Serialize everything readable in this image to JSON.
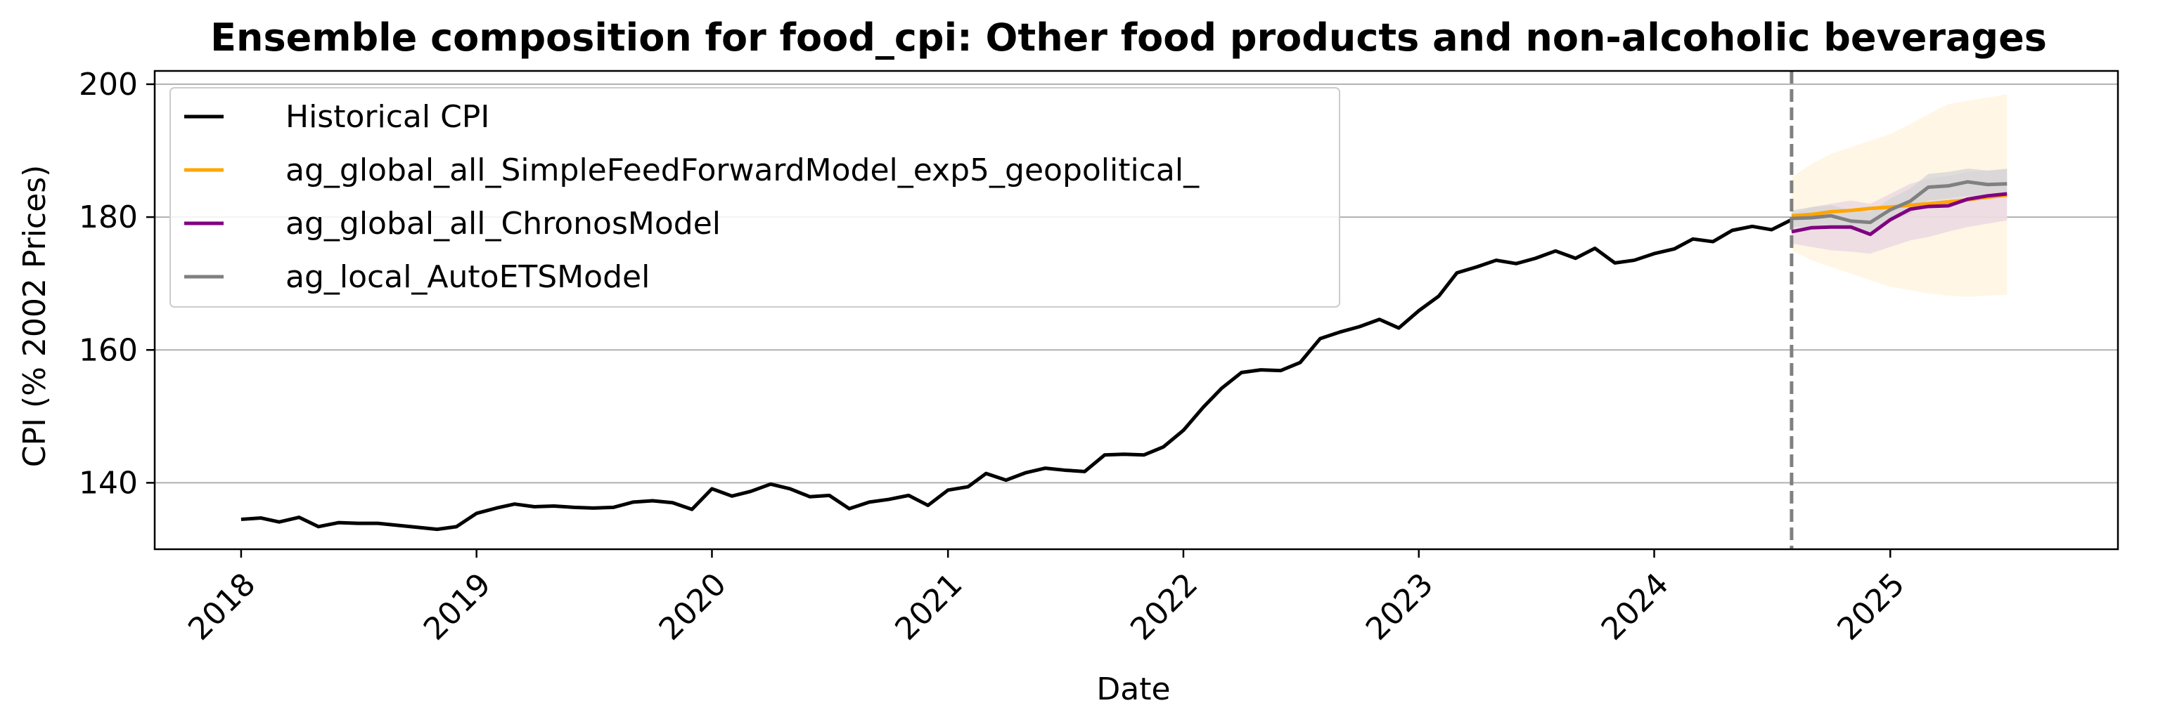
{
  "chart_data": {
    "type": "line",
    "title": "Ensemble composition for food_cpi: Other food products and non-alcoholic beverages",
    "xlabel": "Date",
    "ylabel": "CPI (% 2002 Prices)",
    "x_ticks": [
      "2018",
      "2019",
      "2020",
      "2021",
      "2022",
      "2023",
      "2024",
      "2025"
    ],
    "y_ticks": [
      140,
      160,
      180,
      200
    ],
    "xlim": [
      "2017-08-20",
      "2025-12-20"
    ],
    "ylim": [
      130,
      202
    ],
    "grid": "horizontal",
    "legend_position": "upper-left",
    "forecast_start": "2024-08-01",
    "historical": {
      "name": "Historical CPI",
      "color": "#000000",
      "dates": [
        "2018-01",
        "2018-02",
        "2018-03",
        "2018-04",
        "2018-05",
        "2018-06",
        "2018-07",
        "2018-08",
        "2018-09",
        "2018-10",
        "2018-11",
        "2018-12",
        "2019-01",
        "2019-02",
        "2019-03",
        "2019-04",
        "2019-05",
        "2019-06",
        "2019-07",
        "2019-08",
        "2019-09",
        "2019-10",
        "2019-11",
        "2019-12",
        "2020-01",
        "2020-02",
        "2020-03",
        "2020-04",
        "2020-05",
        "2020-06",
        "2020-07",
        "2020-08",
        "2020-09",
        "2020-10",
        "2020-11",
        "2020-12",
        "2021-01",
        "2021-02",
        "2021-03",
        "2021-04",
        "2021-05",
        "2021-06",
        "2021-07",
        "2021-08",
        "2021-09",
        "2021-10",
        "2021-11",
        "2021-12",
        "2022-01",
        "2022-02",
        "2022-03",
        "2022-04",
        "2022-05",
        "2022-06",
        "2022-07",
        "2022-08",
        "2022-09",
        "2022-10",
        "2022-11",
        "2022-12",
        "2023-01",
        "2023-02",
        "2023-03",
        "2023-04",
        "2023-05",
        "2023-06",
        "2023-07",
        "2023-08",
        "2023-09",
        "2023-10",
        "2023-11",
        "2023-12",
        "2024-01",
        "2024-02",
        "2024-03",
        "2024-04",
        "2024-05",
        "2024-06",
        "2024-07",
        "2024-08"
      ],
      "values": [
        134.5,
        134.7,
        134.1,
        134.8,
        133.4,
        134.0,
        133.9,
        133.9,
        133.6,
        133.3,
        133.0,
        133.4,
        135.4,
        136.2,
        136.8,
        136.4,
        136.5,
        136.3,
        136.2,
        136.3,
        137.1,
        137.3,
        137.0,
        136.0,
        139.1,
        138.0,
        138.7,
        139.8,
        139.1,
        137.9,
        138.1,
        136.1,
        137.1,
        137.5,
        138.1,
        136.6,
        138.9,
        139.4,
        141.4,
        140.4,
        141.5,
        142.2,
        141.9,
        141.7,
        144.2,
        144.3,
        144.2,
        145.4,
        147.9,
        151.4,
        154.2,
        156.6,
        157.0,
        156.9,
        158.1,
        161.7,
        162.7,
        163.5,
        164.6,
        163.3,
        165.9,
        168.1,
        171.6,
        172.5,
        173.5,
        173.0,
        173.8,
        174.9,
        173.8,
        175.3,
        173.1,
        173.5,
        174.5,
        175.2,
        176.7,
        176.3,
        178.0,
        178.6,
        178.1,
        179.6
      ]
    },
    "forecast_dates": [
      "2024-08",
      "2024-09",
      "2024-10",
      "2024-11",
      "2024-12",
      "2025-01",
      "2025-02",
      "2025-03",
      "2025-04",
      "2025-05",
      "2025-06",
      "2025-07"
    ],
    "series": [
      {
        "name": "ag_global_all_SimpleFeedForwardModel_exp5_geopolitical_",
        "color": "#ffa500",
        "values": [
          180.2,
          180.4,
          180.8,
          181.0,
          181.3,
          181.5,
          181.8,
          182.0,
          182.3,
          182.6,
          183.0,
          183.3
        ],
        "band_lower": [
          175.0,
          173.5,
          172.5,
          171.5,
          170.5,
          169.5,
          169.0,
          168.5,
          168.2,
          168.0,
          168.2,
          168.3
        ],
        "band_upper": [
          186.0,
          188.0,
          189.5,
          190.5,
          191.5,
          192.5,
          194.0,
          195.5,
          197.0,
          197.5,
          198.0,
          198.5
        ],
        "band_color": "#fff3dc"
      },
      {
        "name": "ag_global_all_ChronosModel",
        "color": "#800080",
        "values": [
          177.8,
          178.4,
          178.5,
          178.5,
          177.4,
          179.6,
          181.2,
          181.6,
          181.7,
          182.7,
          183.2,
          183.5
        ],
        "band_lower": [
          176.0,
          175.5,
          175.0,
          174.8,
          174.5,
          175.5,
          176.5,
          177.0,
          177.8,
          178.5,
          179.0,
          179.5
        ],
        "band_upper": [
          180.5,
          181.5,
          182.0,
          182.5,
          182.0,
          183.5,
          185.0,
          185.8,
          186.2,
          186.8,
          187.0,
          187.3
        ],
        "band_color": "#e8d5e1"
      },
      {
        "name": "ag_local_AutoETSModel",
        "color": "#808080",
        "values": [
          179.8,
          179.9,
          180.2,
          179.4,
          179.2,
          181.1,
          182.4,
          184.5,
          184.7,
          185.3,
          184.9,
          185.0
        ],
        "band_lower": [
          178.5,
          178.5,
          178.5,
          178.0,
          177.8,
          179.5,
          180.5,
          182.5,
          182.8,
          183.2,
          183.0,
          183.0
        ],
        "band_upper": [
          181.0,
          181.5,
          181.8,
          181.0,
          180.8,
          182.8,
          184.3,
          186.5,
          186.8,
          187.3,
          187.0,
          187.2
        ],
        "band_color": "#d4d4d4"
      }
    ]
  }
}
